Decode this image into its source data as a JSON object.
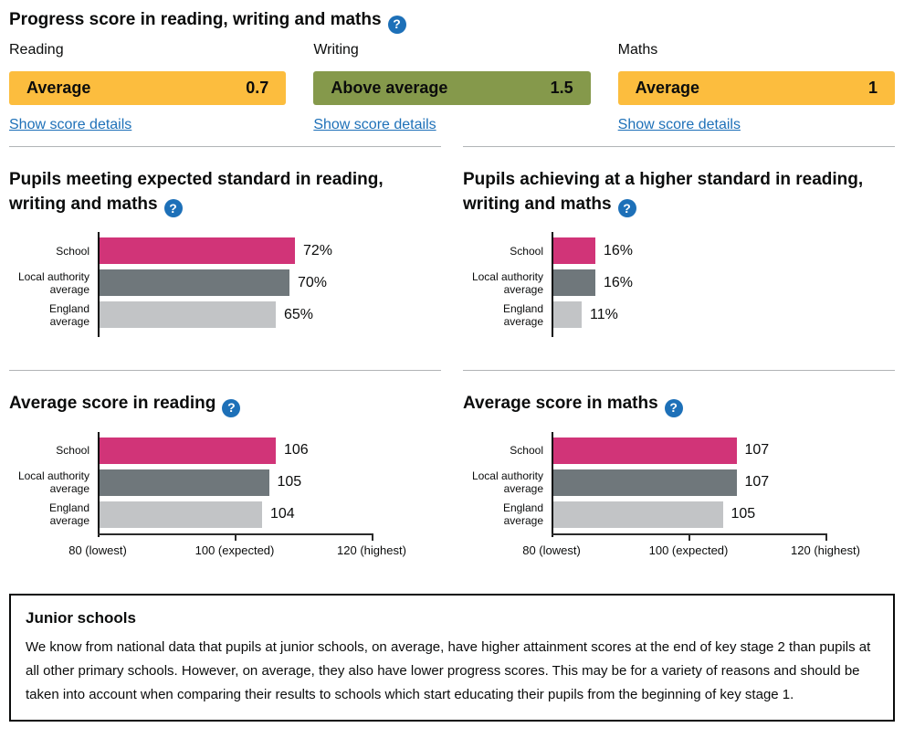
{
  "colors": {
    "text": "#0b0c0c",
    "link": "#1d70b8",
    "divider": "#b1b4b6",
    "help_icon_bg": "#1d70b8",
    "band_average": "#fcbd3e",
    "band_above_average": "#85994b",
    "bar_school": "#d13478",
    "bar_local_authority": "#6f777b",
    "bar_england": "#c2c4c6"
  },
  "icons": {
    "help": "?"
  },
  "progress": {
    "title": "Progress score in reading, writing and maths",
    "details_link_label": "Show score details",
    "subjects": [
      {
        "label": "Reading",
        "band": "Average",
        "score": "0.7",
        "band_color": "#fcbd3e"
      },
      {
        "label": "Writing",
        "band": "Above average",
        "score": "1.5",
        "band_color": "#85994b"
      },
      {
        "label": "Maths",
        "band": "Average",
        "score": "1",
        "band_color": "#fcbd3e"
      }
    ]
  },
  "chart_data": [
    {
      "type": "bar",
      "orientation": "horizontal",
      "title": "Pupils meeting expected standard in reading, writing and maths",
      "categories": [
        "School",
        "Local authority average",
        "England average"
      ],
      "values": [
        72,
        70,
        65
      ],
      "value_labels": [
        "72%",
        "70%",
        "65%"
      ],
      "value_suffix": "%",
      "xlim": [
        0,
        100
      ],
      "x_ticks": [],
      "bar_colors": [
        "#d13478",
        "#6f777b",
        "#c2c4c6"
      ],
      "grid": false,
      "legend": "none"
    },
    {
      "type": "bar",
      "orientation": "horizontal",
      "title": "Pupils achieving at a higher standard in reading, writing and maths",
      "categories": [
        "School",
        "Local authority average",
        "England average"
      ],
      "values": [
        16,
        16,
        11
      ],
      "value_labels": [
        "16%",
        "16%",
        "11%"
      ],
      "value_suffix": "%",
      "xlim": [
        0,
        100
      ],
      "x_ticks": [],
      "bar_colors": [
        "#d13478",
        "#6f777b",
        "#c2c4c6"
      ],
      "grid": false,
      "legend": "none"
    },
    {
      "type": "bar",
      "orientation": "horizontal",
      "title": "Average score in reading",
      "categories": [
        "School",
        "Local authority average",
        "England average"
      ],
      "values": [
        106,
        105,
        104
      ],
      "value_labels": [
        "106",
        "105",
        "104"
      ],
      "value_suffix": "",
      "xlim": [
        80,
        120
      ],
      "x_ticks": [
        {
          "value": 80,
          "label": "80 (lowest)"
        },
        {
          "value": 100,
          "label": "100 (expected)"
        },
        {
          "value": 120,
          "label": "120 (highest)"
        }
      ],
      "bar_colors": [
        "#d13478",
        "#6f777b",
        "#c2c4c6"
      ],
      "grid": false,
      "legend": "none"
    },
    {
      "type": "bar",
      "orientation": "horizontal",
      "title": "Average score in maths",
      "categories": [
        "School",
        "Local authority average",
        "England average"
      ],
      "values": [
        107,
        107,
        105
      ],
      "value_labels": [
        "107",
        "107",
        "105"
      ],
      "value_suffix": "",
      "xlim": [
        80,
        120
      ],
      "x_ticks": [
        {
          "value": 80,
          "label": "80 (lowest)"
        },
        {
          "value": 100,
          "label": "100 (expected)"
        },
        {
          "value": 120,
          "label": "120 (highest)"
        }
      ],
      "bar_colors": [
        "#d13478",
        "#6f777b",
        "#c2c4c6"
      ],
      "grid": false,
      "legend": "none"
    }
  ],
  "junior_schools": {
    "title": "Junior schools",
    "body": "We know from national data that pupils at junior schools, on average, have higher attainment scores at the end of key stage 2 than pupils at all other primary schools. However, on average, they also have lower progress scores. This may be for a variety of reasons and should be taken into account when comparing their results to schools which start educating their pupils from the beginning of key stage 1."
  }
}
